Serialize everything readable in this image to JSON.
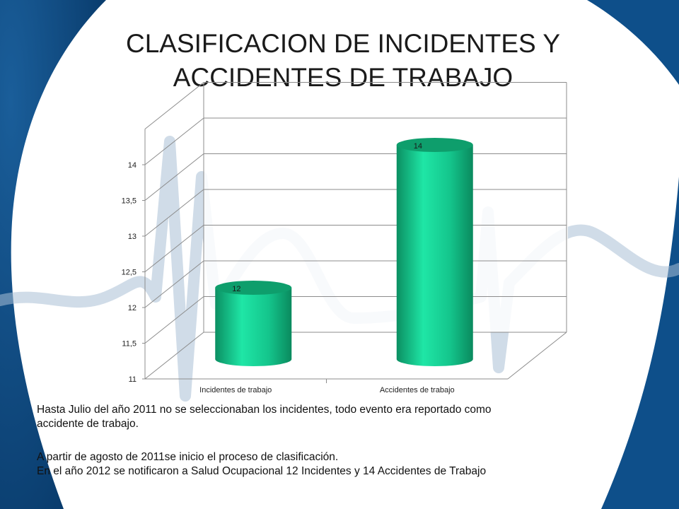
{
  "slide": {
    "title_line1": "CLASIFICACION DE INCIDENTES Y",
    "title_line2": "ACCIDENTES DE TRABAJO",
    "note1_line1": "Hasta Julio  del año 2011 no se seleccionaban los incidentes, todo evento era reportado como",
    "note1_line2": "accidente de trabajo.",
    "note2_line1": "A partir de agosto de 2011se inicio el proceso de clasificación.",
    "note2_line2": "En el año 2012 se notificaron a Salud Ocupacional 12 Incidentes y 14 Accidentes de Trabajo",
    "colors": {
      "bar": "#16c990",
      "bar_top": "#0e9e6c",
      "background_wave": "#0e4f8a"
    }
  },
  "chart_data": {
    "type": "bar",
    "categories": [
      "Incidentes de trabajo",
      "Accidentes de trabajo"
    ],
    "values": [
      12,
      14
    ],
    "data_labels": [
      "12",
      "14"
    ],
    "yticks": [
      "11",
      "11,5",
      "12",
      "12,5",
      "13",
      "13,5",
      "14"
    ],
    "ylim": [
      11,
      14.5
    ],
    "grid": true,
    "legend": "none",
    "style": "3d-cylinder"
  }
}
